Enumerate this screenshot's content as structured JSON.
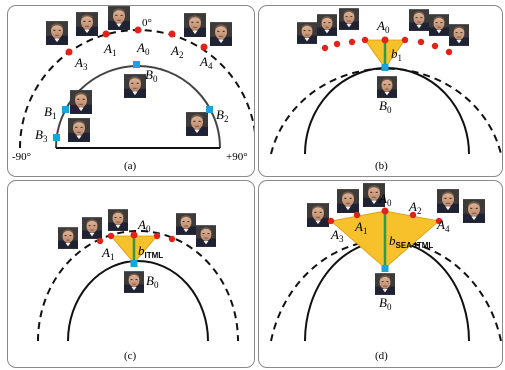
{
  "panels": {
    "a": {
      "caption": "(a)",
      "angles": {
        "top": "0°",
        "left": "-90°",
        "right": "+90°"
      },
      "labels": {
        "A0": "0",
        "A1": "1",
        "A2": "2",
        "A3": "3",
        "A4": "4",
        "B0": "0",
        "B1": "1",
        "B2": "2",
        "B3": "3"
      }
    },
    "b": {
      "caption": "(b)",
      "labels": {
        "A0": "0",
        "b1": "1",
        "B0": "0"
      }
    },
    "c": {
      "caption": "(c)",
      "labels": {
        "A0": "0",
        "A1": "1",
        "b": "ITML",
        "B0": "0"
      }
    },
    "d": {
      "caption": "(d)",
      "labels": {
        "A0": "0",
        "A1": "1",
        "A2": "2",
        "A3": "3",
        "A4": "4",
        "b": "SEA-ITML",
        "B0": "0"
      }
    }
  },
  "colors": {
    "anchor_dot": "#e32119",
    "probe_square": "#1aa3e0",
    "wedge_fill": "#f6c12a",
    "bias_line": "#2e9a4a",
    "arc": "#111111"
  }
}
